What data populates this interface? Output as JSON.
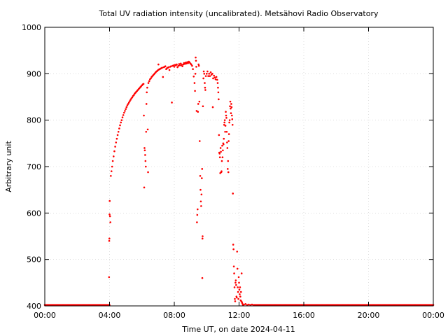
{
  "chart_data": {
    "type": "scatter",
    "title": "Total UV radiation intensity (uncalibrated). Metsähovi Radio Observatory",
    "xlabel": "Time UT, on date 2024-04-11",
    "ylabel": "Arbitrary unit",
    "xlim": [
      0,
      24
    ],
    "ylim": [
      400,
      1000
    ],
    "x_ticks": [
      {
        "value": 0,
        "label": "00:00"
      },
      {
        "value": 4,
        "label": "04:00"
      },
      {
        "value": 8,
        "label": "08:00"
      },
      {
        "value": 12,
        "label": "12:00"
      },
      {
        "value": 16,
        "label": "16:00"
      },
      {
        "value": 20,
        "label": "20:00"
      },
      {
        "value": 24,
        "label": "00:00"
      }
    ],
    "y_ticks": [
      400,
      500,
      600,
      700,
      800,
      900,
      1000
    ],
    "grid": true,
    "marker_color": "#ff0000",
    "baseline": {
      "y": 402,
      "from": 0,
      "to": 4.0,
      "step": 0.05,
      "from2": 12.9,
      "to2": 24,
      "step2": 0.05
    },
    "series": [
      {
        "values": [
          [
            3.97,
            462
          ],
          [
            3.98,
            540
          ],
          [
            3.99,
            545
          ],
          [
            4.0,
            597
          ],
          [
            4.01,
            626
          ],
          [
            4.03,
            593
          ],
          [
            4.05,
            580
          ],
          [
            4.08,
            680
          ],
          [
            4.12,
            690
          ],
          [
            4.16,
            700
          ],
          [
            4.2,
            712
          ],
          [
            4.25,
            722
          ],
          [
            4.3,
            733
          ],
          [
            4.35,
            743
          ],
          [
            4.4,
            752
          ],
          [
            4.45,
            760
          ],
          [
            4.5,
            768
          ],
          [
            4.55,
            775
          ],
          [
            4.6,
            782
          ],
          [
            4.65,
            789
          ],
          [
            4.7,
            795
          ],
          [
            4.75,
            800
          ],
          [
            4.8,
            806
          ],
          [
            4.85,
            811
          ],
          [
            4.9,
            816
          ],
          [
            4.95,
            820
          ],
          [
            5.0,
            824
          ],
          [
            5.05,
            828
          ],
          [
            5.1,
            832
          ],
          [
            5.15,
            835
          ],
          [
            5.2,
            838
          ],
          [
            5.25,
            841
          ],
          [
            5.3,
            844
          ],
          [
            5.35,
            847
          ],
          [
            5.4,
            849
          ],
          [
            5.45,
            852
          ],
          [
            5.5,
            854
          ],
          [
            5.55,
            857
          ],
          [
            5.6,
            859
          ],
          [
            5.65,
            861
          ],
          [
            5.7,
            863
          ],
          [
            5.75,
            865
          ],
          [
            5.8,
            867
          ],
          [
            5.85,
            869
          ],
          [
            5.9,
            871
          ],
          [
            5.95,
            873
          ],
          [
            6.0,
            875
          ],
          [
            6.05,
            877
          ],
          [
            6.1,
            878
          ],
          [
            6.12,
            810
          ],
          [
            6.14,
            655
          ],
          [
            6.16,
            740
          ],
          [
            6.18,
            735
          ],
          [
            6.2,
            725
          ],
          [
            6.22,
            712
          ],
          [
            6.24,
            700
          ],
          [
            6.26,
            775
          ],
          [
            6.28,
            835
          ],
          [
            6.3,
            860
          ],
          [
            6.33,
            870
          ],
          [
            6.36,
            780
          ],
          [
            6.38,
            688
          ],
          [
            6.4,
            880
          ],
          [
            6.45,
            884
          ],
          [
            6.5,
            888
          ],
          [
            6.55,
            890
          ],
          [
            6.6,
            893
          ],
          [
            6.65,
            895
          ],
          [
            6.7,
            897
          ],
          [
            6.75,
            899
          ],
          [
            6.8,
            901
          ],
          [
            6.85,
            903
          ],
          [
            6.9,
            905
          ],
          [
            6.95,
            906
          ],
          [
            7.0,
            908
          ],
          [
            7.02,
            920
          ],
          [
            7.05,
            909
          ],
          [
            7.1,
            910
          ],
          [
            7.15,
            911
          ],
          [
            7.2,
            912
          ],
          [
            7.25,
            913
          ],
          [
            7.3,
            893
          ],
          [
            7.35,
            914
          ],
          [
            7.4,
            915
          ],
          [
            7.45,
            916
          ],
          [
            7.5,
            910
          ],
          [
            7.55,
            912
          ],
          [
            7.6,
            913
          ],
          [
            7.65,
            914
          ],
          [
            7.7,
            908
          ],
          [
            7.75,
            915
          ],
          [
            7.8,
            916
          ],
          [
            7.85,
            838
          ],
          [
            7.9,
            917
          ],
          [
            7.95,
            918
          ],
          [
            8.0,
            915
          ],
          [
            8.05,
            919
          ],
          [
            8.1,
            918
          ],
          [
            8.15,
            920
          ],
          [
            8.2,
            914
          ],
          [
            8.25,
            917
          ],
          [
            8.3,
            921
          ],
          [
            8.35,
            918
          ],
          [
            8.4,
            922
          ],
          [
            8.45,
            919
          ],
          [
            8.5,
            916
          ],
          [
            8.55,
            920
          ],
          [
            8.6,
            923
          ],
          [
            8.65,
            921
          ],
          [
            8.7,
            924
          ],
          [
            8.75,
            922
          ],
          [
            8.8,
            925
          ],
          [
            8.85,
            923
          ],
          [
            8.9,
            926
          ],
          [
            8.95,
            924
          ],
          [
            9.0,
            922
          ],
          [
            9.05,
            920
          ],
          [
            9.1,
            917
          ],
          [
            9.15,
            910
          ],
          [
            9.2,
            894
          ],
          [
            9.25,
            880
          ],
          [
            9.28,
            863
          ],
          [
            9.3,
            900
          ],
          [
            9.32,
            935
          ],
          [
            9.34,
            928
          ],
          [
            9.36,
            915
          ],
          [
            9.38,
            820
          ],
          [
            9.4,
            580
          ],
          [
            9.42,
            596
          ],
          [
            9.44,
            608
          ],
          [
            9.46,
            818
          ],
          [
            9.48,
            835
          ],
          [
            9.5,
            920
          ],
          [
            9.52,
            917
          ],
          [
            9.55,
            840
          ],
          [
            9.57,
            755
          ],
          [
            9.6,
            680
          ],
          [
            9.62,
            650
          ],
          [
            9.64,
            625
          ],
          [
            9.66,
            615
          ],
          [
            9.68,
            640
          ],
          [
            9.7,
            675
          ],
          [
            9.72,
            695
          ],
          [
            9.73,
            460
          ],
          [
            9.74,
            545
          ],
          [
            9.75,
            550
          ],
          [
            9.77,
            830
          ],
          [
            9.8,
            890
          ],
          [
            9.82,
            905
          ],
          [
            9.85,
            900
          ],
          [
            9.88,
            880
          ],
          [
            9.9,
            870
          ],
          [
            9.92,
            865
          ],
          [
            9.95,
            895
          ],
          [
            10.0,
            900
          ],
          [
            10.05,
            905
          ],
          [
            10.1,
            895
          ],
          [
            10.15,
            900
          ],
          [
            10.2,
            895
          ],
          [
            10.25,
            903
          ],
          [
            10.3,
            898
          ],
          [
            10.35,
            900
          ],
          [
            10.38,
            828
          ],
          [
            10.4,
            890
          ],
          [
            10.45,
            896
          ],
          [
            10.5,
            892
          ],
          [
            10.55,
            888
          ],
          [
            10.6,
            893
          ],
          [
            10.65,
            887
          ],
          [
            10.68,
            880
          ],
          [
            10.7,
            870
          ],
          [
            10.72,
            860
          ],
          [
            10.74,
            845
          ],
          [
            10.76,
            768
          ],
          [
            10.78,
            730
          ],
          [
            10.8,
            728
          ],
          [
            10.82,
            720
          ],
          [
            10.84,
            686
          ],
          [
            10.86,
            740
          ],
          [
            10.88,
            732
          ],
          [
            10.9,
            688
          ],
          [
            10.92,
            690
          ],
          [
            10.94,
            712
          ],
          [
            10.96,
            745
          ],
          [
            10.98,
            720
          ],
          [
            11.0,
            735
          ],
          [
            11.02,
            750
          ],
          [
            11.04,
            748
          ],
          [
            11.06,
            760
          ],
          [
            11.08,
            790
          ],
          [
            11.1,
            795
          ],
          [
            11.12,
            800
          ],
          [
            11.14,
            775
          ],
          [
            11.16,
            788
          ],
          [
            11.18,
            818
          ],
          [
            11.2,
            810
          ],
          [
            11.22,
            805
          ],
          [
            11.24,
            775
          ],
          [
            11.26,
            752
          ],
          [
            11.28,
            740
          ],
          [
            11.3,
            695
          ],
          [
            11.32,
            712
          ],
          [
            11.34,
            688
          ],
          [
            11.36,
            755
          ],
          [
            11.38,
            770
          ],
          [
            11.4,
            795
          ],
          [
            11.42,
            800
          ],
          [
            11.44,
            830
          ],
          [
            11.46,
            840
          ],
          [
            11.48,
            825
          ],
          [
            11.5,
            815
          ],
          [
            11.52,
            835
          ],
          [
            11.54,
            828
          ],
          [
            11.56,
            810
          ],
          [
            11.58,
            802
          ],
          [
            11.6,
            790
          ],
          [
            11.62,
            642
          ],
          [
            11.64,
            532
          ],
          [
            11.66,
            522
          ],
          [
            11.68,
            485
          ],
          [
            11.7,
            470
          ],
          [
            11.72,
            440
          ],
          [
            11.74,
            415
          ],
          [
            11.76,
            410
          ],
          [
            11.78,
            450
          ],
          [
            11.8,
            455
          ],
          [
            11.82,
            445
          ],
          [
            11.84,
            420
          ],
          [
            11.86,
            418
          ],
          [
            11.88,
            517
          ],
          [
            11.9,
            480
          ],
          [
            11.92,
            440
          ],
          [
            11.94,
            430
          ],
          [
            11.96,
            415
          ],
          [
            11.98,
            462
          ],
          [
            12.0,
            450
          ],
          [
            12.02,
            435
          ],
          [
            12.04,
            425
          ],
          [
            12.06,
            440
          ],
          [
            12.08,
            420
          ],
          [
            12.1,
            412
          ],
          [
            12.12,
            430
          ],
          [
            12.14,
            410
          ],
          [
            12.16,
            470
          ],
          [
            12.18,
            408
          ],
          [
            12.2,
            405
          ],
          [
            12.25,
            402
          ],
          [
            12.3,
            403
          ],
          [
            12.4,
            404
          ],
          [
            12.5,
            402
          ],
          [
            12.6,
            403
          ],
          [
            12.7,
            402
          ],
          [
            12.8,
            403
          ]
        ]
      }
    ]
  }
}
